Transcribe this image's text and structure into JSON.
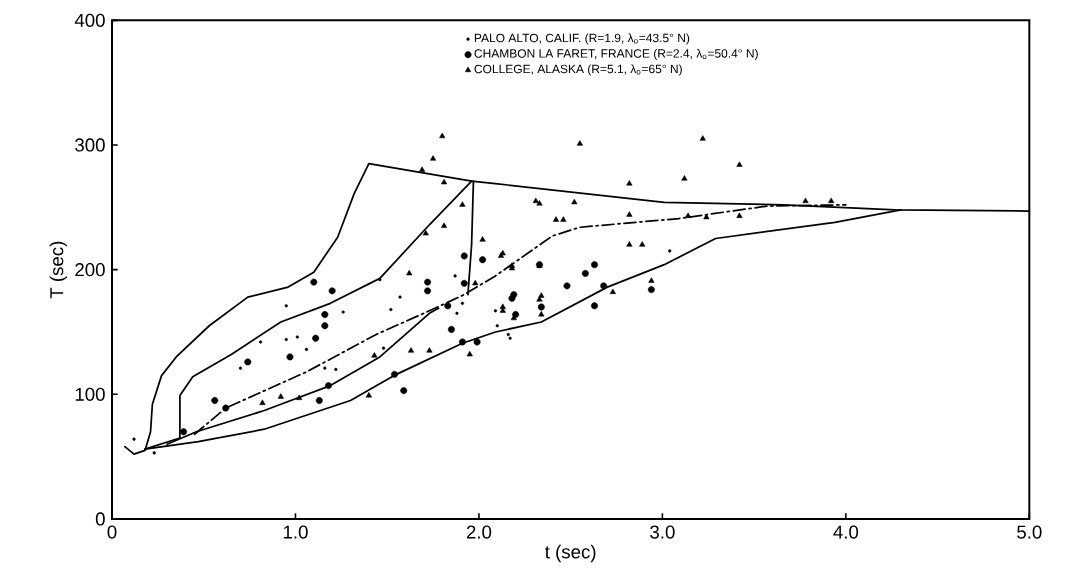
{
  "chart_data": {
    "type": "scatter",
    "xlabel": "t (sec)",
    "ylabel": "T (sec)",
    "xlim": [
      0,
      5
    ],
    "ylim": [
      0,
      400
    ],
    "xticks": [
      {
        "value": 0,
        "label": "0"
      },
      {
        "value": 1,
        "label": "1.0"
      },
      {
        "value": 2,
        "label": "2.0"
      },
      {
        "value": 3,
        "label": "3.0"
      },
      {
        "value": 4,
        "label": "4.0"
      },
      {
        "value": 5,
        "label": "5.0"
      }
    ],
    "yticks": [
      0,
      100,
      200,
      300,
      400
    ],
    "legend": "top right",
    "grid": false,
    "series": [
      {
        "name": "PALO ALTO, CALIF. (R=1.9, λ$_{o}$=43.5° N)",
        "marker": "circle",
        "color": "#000000",
        "x": [
          0.95,
          1.26,
          1.46,
          1.57,
          1.52,
          0.95,
          1.01,
          1.06,
          0.7,
          0.81,
          1.48,
          1.16,
          1.22,
          1.87,
          1.88,
          1.91,
          2.09,
          2.17,
          2.1,
          0.12,
          0.23,
          3.04,
          2.16
        ],
        "values": [
          171,
          166,
          192,
          178,
          168,
          144,
          146,
          136,
          121,
          142,
          137,
          121,
          120,
          195,
          165,
          173,
          167,
          145,
          155,
          64,
          53,
          215,
          148
        ]
      },
      {
        "name": "CHAMBON LA FARET, FRANCE (R=2.4, λ$_{o}$=50.4° N)",
        "marker": "circle",
        "color": "#000000",
        "x": [
          1.1,
          1.2,
          1.16,
          1.16,
          1.11,
          0.97,
          0.74,
          0.56,
          0.62,
          0.39,
          1.13,
          1.18,
          1.54,
          1.59,
          1.91,
          1.99,
          1.83,
          1.85,
          1.72,
          1.72,
          1.92,
          1.92,
          2.02,
          2.18,
          2.19,
          2.2,
          2.34,
          2.58,
          2.63,
          2.48,
          2.63,
          2.68,
          2.94,
          2.33
        ],
        "values": [
          190,
          183,
          164,
          155,
          145,
          130,
          126,
          95,
          89,
          70,
          95,
          107,
          116,
          103,
          142,
          142,
          171,
          152,
          190,
          183,
          211,
          189,
          208,
          177,
          180,
          164,
          170,
          197,
          204,
          187,
          171,
          187,
          184,
          204
        ]
      },
      {
        "name": "COLLEGE, ALASKA (R=5.1, λ$_{o}$=65° N)",
        "marker": "triangle",
        "color": "#000000",
        "x": [
          1.8,
          1.75,
          1.69,
          1.81,
          1.91,
          1.81,
          1.71,
          1.62,
          2.02,
          2.12,
          2.33,
          1.98,
          2.18,
          2.19,
          2.13,
          2.33,
          1.43,
          1.63,
          1.73,
          1.95,
          0.92,
          0.82,
          1.02,
          1.4,
          2.55,
          3.22,
          3.42,
          3.12,
          2.82,
          2.31,
          2.52,
          2.42,
          2.46,
          2.82,
          3.14,
          3.24,
          3.42,
          3.78,
          3.92,
          2.13,
          2.18,
          2.33,
          2.82,
          2.89,
          2.34,
          2.34,
          2.73,
          2.94,
          2.13
        ],
        "values": [
          307,
          289,
          280,
          270,
          252,
          235,
          229,
          197,
          224,
          211,
          253,
          189,
          201,
          161,
          167,
          176,
          131,
          135,
          135,
          132,
          98,
          93,
          97,
          99,
          301,
          305,
          284,
          273,
          269,
          255,
          254,
          240,
          240,
          244,
          243,
          242,
          243,
          255,
          255,
          213,
          203,
          203,
          220,
          220,
          179,
          164,
          182,
          191,
          170
        ]
      },
      {
        "type": "line",
        "line_style": "solid",
        "marker": "none",
        "color": "#000000",
        "x": [
          0.07,
          0.12,
          0.18,
          0.21,
          0.22,
          0.27,
          0.35,
          0.53,
          0.74,
          0.96,
          1.1,
          1.23,
          1.32,
          1.4,
          1.96,
          2.09,
          3.01,
          3.66,
          4.27,
          5.0
        ],
        "values": [
          58,
          52,
          55,
          70,
          92,
          115,
          130,
          155,
          178,
          186,
          198,
          226,
          261,
          285,
          271,
          269,
          254,
          252,
          248,
          247
        ]
      },
      {
        "type": "line",
        "line_style": "solid",
        "marker": "none",
        "color": "#000000",
        "x": [
          0.18,
          0.37,
          0.37,
          0.44,
          0.65,
          0.92,
          1.19,
          1.46,
          1.73,
          1.96
        ],
        "values": [
          56,
          65,
          99,
          114,
          132,
          158,
          173,
          193,
          236,
          271
        ]
      },
      {
        "type": "line",
        "line_style": "solid",
        "marker": "none",
        "color": "#000000",
        "x": [
          1.97,
          1.96,
          1.94
        ],
        "values": [
          271,
          220,
          180
        ]
      },
      {
        "type": "line",
        "line_style": "solid",
        "marker": "none",
        "color": "#000000",
        "x": [
          0.18,
          0.47,
          0.83,
          1.3,
          1.55,
          1.91,
          2.09,
          2.34,
          2.7,
          3.01,
          3.29,
          3.94,
          4.3
        ],
        "values": [
          56,
          62,
          72,
          95,
          116,
          141,
          150,
          158,
          186,
          204,
          225,
          238,
          248
        ]
      },
      {
        "type": "line",
        "line_style": "solid",
        "marker": "none",
        "color": "#000000",
        "x": [
          0.3,
          0.46,
          0.83,
          1.19,
          1.46,
          1.73,
          1.78
        ],
        "values": [
          60,
          70,
          87,
          107,
          130,
          165,
          169
        ]
      },
      {
        "type": "line",
        "line_style": "dashed",
        "marker": "none",
        "color": "#000000",
        "x": [
          0.45,
          0.62,
          1.06,
          1.44,
          1.76,
          1.92,
          2.09,
          2.4,
          2.55,
          3.09,
          3.57,
          4.0
        ],
        "values": [
          68,
          89,
          118,
          148,
          169,
          180,
          195,
          227,
          234,
          241,
          251,
          252
        ]
      }
    ]
  }
}
